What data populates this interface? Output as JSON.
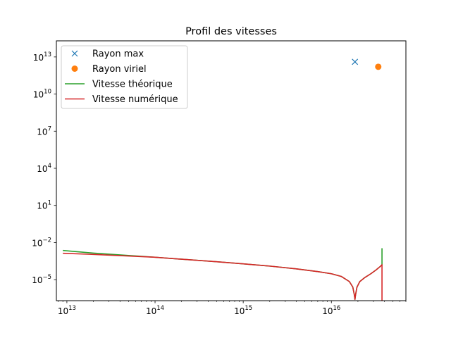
{
  "chart_data": {
    "type": "line",
    "title": "Profil des vitesses",
    "xlabel": "",
    "ylabel": "",
    "x_scale": "log",
    "y_scale": "log",
    "xlim": [
      7600000000000.0,
      7e+16
    ],
    "ylim": [
      2e-07,
      200000000000000.0
    ],
    "x_ticks": [
      {
        "value": 10000000000000.0,
        "base": "10",
        "exp": "13"
      },
      {
        "value": 100000000000000.0,
        "base": "10",
        "exp": "14"
      },
      {
        "value": 1000000000000000.0,
        "base": "10",
        "exp": "15"
      },
      {
        "value": 1e+16,
        "base": "10",
        "exp": "16"
      }
    ],
    "y_ticks": [
      {
        "value": 1e-05,
        "base": "10",
        "exp": "−5"
      },
      {
        "value": 0.01,
        "base": "10",
        "exp": "−2"
      },
      {
        "value": 10.0,
        "base": "10",
        "exp": "1"
      },
      {
        "value": 10000.0,
        "base": "10",
        "exp": "4"
      },
      {
        "value": 10000000.0,
        "base": "10",
        "exp": "7"
      },
      {
        "value": 10000000000.0,
        "base": "10",
        "exp": "10"
      },
      {
        "value": 10000000000000.0,
        "base": "10",
        "exp": "13"
      }
    ],
    "grid": false,
    "legend_position": "top-left",
    "series": [
      {
        "name": "Rayon max",
        "kind": "marker-x",
        "color": "#1f77b4",
        "points": [
          [
            1.85e+16,
            4000000000000.0
          ]
        ]
      },
      {
        "name": "Rayon viriel",
        "kind": "marker-dot",
        "color": "#ff7f0e",
        "points": [
          [
            3.4e+16,
            1600000000000.0
          ]
        ]
      },
      {
        "name": "Vitesse théorique",
        "kind": "line",
        "color": "#2ca02c",
        "points": [
          [
            9000000000000.0,
            0.0023
          ],
          [
            20000000000000.0,
            0.0014
          ],
          [
            50000000000000.0,
            0.0009
          ],
          [
            100000000000000.0,
            0.00065
          ],
          [
            200000000000000.0,
            0.00045
          ],
          [
            500000000000000.0,
            0.00028
          ],
          [
            1000000000000000.0,
            0.00019
          ],
          [
            2000000000000000.0,
            0.000125
          ],
          [
            4000000000000000.0,
            7.5e-05
          ],
          [
            7000000000000000.0,
            4.5e-05
          ],
          [
            1e+16,
            3e-05
          ],
          [
            1.3e+16,
            1.8e-05
          ],
          [
            1.6e+16,
            7e-06
          ],
          [
            1.75e+16,
            2.5e-06
          ],
          [
            1.82e+16,
            6e-07
          ],
          [
            1.85e+16,
            2.5e-07
          ],
          [
            1.88e+16,
            6e-07
          ],
          [
            1.95e+16,
            2.5e-06
          ],
          [
            2.1e+16,
            7e-06
          ],
          [
            2.4e+16,
            1.5e-05
          ],
          [
            2.8e+16,
            3e-05
          ],
          [
            3.2e+16,
            6e-05
          ],
          [
            3.6e+16,
            0.00012
          ],
          [
            3.75e+16,
            0.00016
          ],
          [
            3.75e+16,
            0.0035
          ]
        ]
      },
      {
        "name": "Vitesse numérique",
        "kind": "line",
        "color": "#d62728",
        "points": [
          [
            9000000000000.0,
            0.00135
          ],
          [
            20000000000000.0,
            0.0011
          ],
          [
            50000000000000.0,
            0.00082
          ],
          [
            100000000000000.0,
            0.00065
          ],
          [
            200000000000000.0,
            0.00045
          ],
          [
            500000000000000.0,
            0.00028
          ],
          [
            1000000000000000.0,
            0.00019
          ],
          [
            2000000000000000.0,
            0.000125
          ],
          [
            4000000000000000.0,
            7.5e-05
          ],
          [
            7000000000000000.0,
            4.5e-05
          ],
          [
            1e+16,
            3e-05
          ],
          [
            1.3e+16,
            1.8e-05
          ],
          [
            1.6e+16,
            7e-06
          ],
          [
            1.75e+16,
            2.5e-06
          ],
          [
            1.82e+16,
            6e-07
          ],
          [
            1.85e+16,
            2.5e-07
          ],
          [
            1.88e+16,
            6e-07
          ],
          [
            1.95e+16,
            2.5e-06
          ],
          [
            2.1e+16,
            7e-06
          ],
          [
            2.4e+16,
            1.5e-05
          ],
          [
            2.8e+16,
            3e-05
          ],
          [
            3.2e+16,
            6e-05
          ],
          [
            3.6e+16,
            0.00012
          ],
          [
            3.75e+16,
            0.00016
          ],
          [
            3.75e+16,
            2e-07
          ]
        ]
      }
    ]
  }
}
